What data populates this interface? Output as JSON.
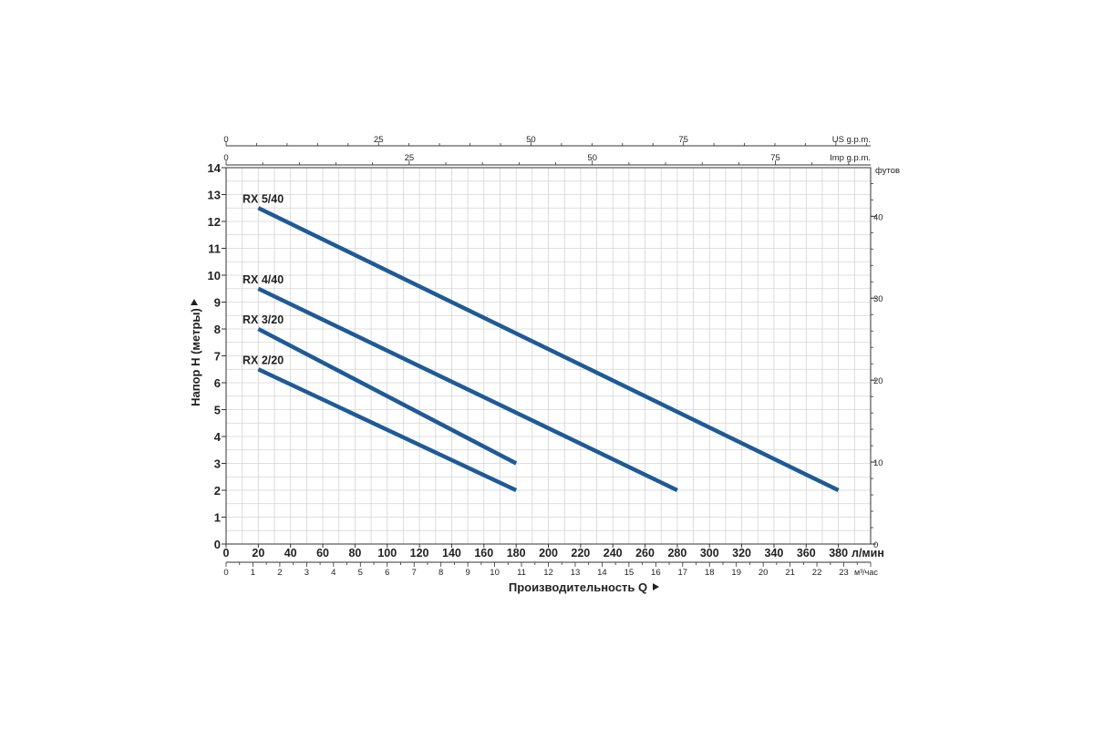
{
  "chart_data": {
    "type": "line",
    "title": "",
    "xlabel": "Производительность  Q",
    "ylabel": "Напор  H (метры)",
    "x_unit": "л/мин",
    "xlim": [
      0,
      400
    ],
    "ylim": [
      0,
      14
    ],
    "x_ticks": [
      0,
      20,
      40,
      60,
      80,
      100,
      120,
      140,
      160,
      180,
      200,
      220,
      240,
      260,
      280,
      300,
      320,
      340,
      360,
      380
    ],
    "y_ticks": [
      0,
      1,
      2,
      3,
      4,
      5,
      6,
      7,
      8,
      9,
      10,
      11,
      12,
      13,
      14
    ],
    "grid": true,
    "line_color": "#1f5a96",
    "secondary_axes": {
      "m3h": {
        "unit": "м³/час",
        "max": 24,
        "ticks": [
          0,
          1,
          2,
          3,
          4,
          5,
          6,
          7,
          8,
          9,
          10,
          11,
          12,
          13,
          14,
          15,
          16,
          17,
          18,
          19,
          20,
          21,
          22,
          23
        ]
      },
      "us_gpm": {
        "unit": "US g.p.m.",
        "max": 105.7,
        "ticks": [
          0,
          25,
          50,
          75
        ]
      },
      "imp_gpm": {
        "unit": "Imp g.p.m.",
        "max": 88,
        "ticks": [
          0,
          25,
          50,
          75
        ]
      },
      "feet": {
        "unit": "футов",
        "max": 45.93,
        "ticks": [
          0,
          10,
          20,
          30,
          40
        ]
      }
    },
    "series": [
      {
        "name": "RX 5/40",
        "x": [
          20,
          380
        ],
        "y": [
          12.5,
          2
        ]
      },
      {
        "name": "RX 4/40",
        "x": [
          20,
          280
        ],
        "y": [
          9.5,
          2
        ]
      },
      {
        "name": "RX 3/20",
        "x": [
          20,
          180
        ],
        "y": [
          8,
          3
        ]
      },
      {
        "name": "RX 2/20",
        "x": [
          20,
          180
        ],
        "y": [
          6.5,
          2
        ]
      }
    ]
  }
}
